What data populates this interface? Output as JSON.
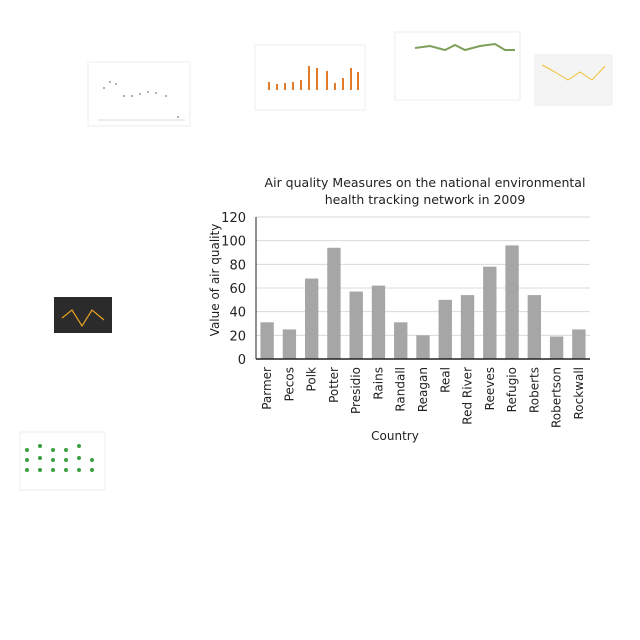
{
  "chart_data": {
    "type": "bar",
    "title": "Air quality Measures on the national environmental health tracking network in 2009",
    "xlabel": "Country",
    "ylabel": "Value of  air quality",
    "categories": [
      "Parmer",
      "Pecos",
      "Polk",
      "Potter",
      "Presidio",
      "Rains",
      "Randall",
      "Reagan",
      "Real",
      "Red River",
      "Reeves",
      "Refugio",
      "Roberts",
      "Robertson",
      "Rockwall"
    ],
    "values": [
      31,
      25,
      68,
      94,
      57,
      62,
      31,
      20,
      50,
      54,
      78,
      96,
      54,
      19,
      25
    ],
    "color": "#a6a6a6",
    "ylim": [
      0,
      120
    ],
    "yticks": [
      0,
      20,
      40,
      60,
      80,
      100,
      120
    ],
    "grid": true
  }
}
